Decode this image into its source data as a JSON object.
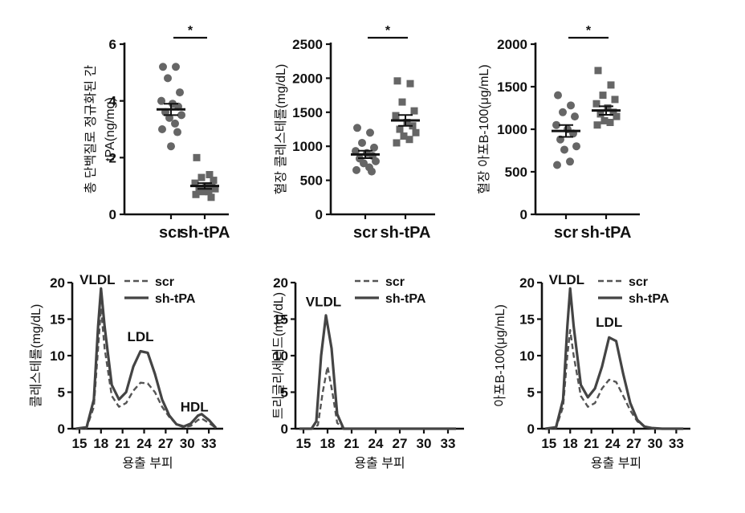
{
  "chart_data": [
    {
      "id": "p1",
      "type": "scatter",
      "ylabel_line1": "총 단백질로 정규화된 간",
      "ylabel_line2": "tPA(ng/mg)",
      "ylim": [
        0,
        6
      ],
      "yticks": [
        0,
        2,
        4,
        6
      ],
      "categories": [
        "scr",
        "sh-tPA"
      ],
      "series": [
        {
          "name": "scr",
          "marker": "circle",
          "mean": 3.7,
          "sem": 0.2,
          "values": [
            5.2,
            5.2,
            4.8,
            4.3,
            4.0,
            3.9,
            3.8,
            3.6,
            3.5,
            3.4,
            3.2,
            3.0,
            2.9,
            2.4
          ]
        },
        {
          "name": "sh-tPA",
          "marker": "square",
          "mean": 1.0,
          "sem": 0.1,
          "values": [
            2.0,
            1.4,
            1.3,
            1.2,
            1.1,
            1.0,
            1.0,
            0.9,
            0.9,
            0.8,
            0.8,
            0.7,
            0.6
          ]
        }
      ],
      "sig": "*"
    },
    {
      "id": "p2",
      "type": "scatter",
      "ylabel": "혈장 콜레스테롤(mg/dL)",
      "ylim": [
        0,
        2500
      ],
      "yticks": [
        0,
        500,
        1000,
        1500,
        2000,
        2500
      ],
      "categories": [
        "scr",
        "sh-tPA"
      ],
      "series": [
        {
          "name": "scr",
          "marker": "circle",
          "mean": 880,
          "sem": 55,
          "values": [
            1270,
            1200,
            1050,
            980,
            930,
            900,
            860,
            820,
            780,
            750,
            690,
            650,
            630
          ]
        },
        {
          "name": "sh-tPA",
          "marker": "square",
          "mean": 1380,
          "sem": 80,
          "values": [
            1960,
            1920,
            1650,
            1520,
            1450,
            1350,
            1300,
            1250,
            1200,
            1150,
            1100,
            1050
          ]
        }
      ],
      "sig": "*"
    },
    {
      "id": "p3",
      "type": "scatter",
      "ylabel": "혈장 아포B-100(μg/mL)",
      "ylim": [
        0,
        2000
      ],
      "yticks": [
        0,
        500,
        1000,
        1500,
        2000
      ],
      "categories": [
        "scr",
        "sh-tPA"
      ],
      "series": [
        {
          "name": "scr",
          "marker": "circle",
          "mean": 980,
          "sem": 70,
          "values": [
            1400,
            1280,
            1200,
            1150,
            1050,
            1000,
            950,
            880,
            800,
            760,
            620,
            580
          ]
        },
        {
          "name": "sh-tPA",
          "marker": "square",
          "mean": 1220,
          "sem": 50,
          "values": [
            1690,
            1520,
            1400,
            1350,
            1300,
            1250,
            1200,
            1180,
            1150,
            1100,
            1080,
            1050
          ]
        }
      ],
      "sig": "*"
    },
    {
      "id": "p4",
      "type": "line",
      "ylabel": "콜레스테롤(mg/dL)",
      "xlabel": "용출 부피",
      "xlim": [
        14,
        35
      ],
      "ylim": [
        0,
        20
      ],
      "xticks": [
        15,
        18,
        21,
        24,
        27,
        30,
        33
      ],
      "yticks": [
        0,
        5,
        10,
        15,
        20
      ],
      "annotations": [
        {
          "text": "VLDL",
          "at": [
            17.5,
            20
          ]
        },
        {
          "text": "LDL",
          "at": [
            23.5,
            12.2
          ]
        },
        {
          "text": "HDL",
          "at": [
            31.0,
            2.6
          ]
        }
      ],
      "legend": [
        "scr",
        "sh-tPA"
      ],
      "series": [
        {
          "name": "scr",
          "style": "dashed",
          "x": [
            14.5,
            16,
            17,
            17.6,
            18,
            18.5,
            19.5,
            20.5,
            21.5,
            22.5,
            23.5,
            24.5,
            25.5,
            26.5,
            27.5,
            28.5,
            29.5,
            30.5,
            31.5,
            32,
            33,
            34
          ],
          "y": [
            0,
            0.1,
            3,
            11,
            16.5,
            11,
            4.5,
            3.0,
            3.5,
            5.2,
            6.3,
            6.2,
            5.0,
            3.0,
            1.6,
            0.6,
            0.2,
            0.4,
            1.2,
            1.4,
            0.8,
            0.1
          ]
        },
        {
          "name": "sh-tPA",
          "style": "solid",
          "x": [
            14.5,
            16,
            17,
            17.6,
            18,
            18.5,
            19.5,
            20.5,
            21.5,
            22.5,
            23.5,
            24.5,
            25.5,
            26.5,
            27.5,
            28.5,
            29.5,
            30.5,
            31.5,
            32,
            33,
            34
          ],
          "y": [
            0,
            0.2,
            4,
            14,
            19.2,
            14,
            6,
            4.0,
            5.0,
            8.5,
            10.6,
            10.4,
            7.5,
            4.0,
            1.8,
            0.6,
            0.3,
            0.7,
            1.8,
            2.0,
            1.2,
            0.1
          ]
        }
      ]
    },
    {
      "id": "p5",
      "type": "line",
      "ylabel": "트리글리세리드(mg/dL)",
      "xlabel": "용출 부피",
      "xlim": [
        14,
        35
      ],
      "ylim": [
        0,
        20
      ],
      "xticks": [
        15,
        18,
        21,
        24,
        27,
        30,
        33
      ],
      "yticks": [
        0,
        5,
        10,
        15,
        20
      ],
      "annotations": [
        {
          "text": "VLDL",
          "at": [
            17.5,
            17.0
          ]
        }
      ],
      "legend": [
        "scr",
        "sh-tPA"
      ],
      "series": [
        {
          "name": "scr",
          "style": "dashed",
          "x": [
            14.5,
            16,
            16.8,
            17.4,
            18,
            18.6,
            19.2,
            20,
            22,
            26,
            30,
            34
          ],
          "y": [
            0,
            0,
            0.5,
            5,
            8.5,
            5,
            0.8,
            0,
            0,
            0,
            0,
            0
          ]
        },
        {
          "name": "sh-tPA",
          "style": "solid",
          "x": [
            14.5,
            16,
            16.6,
            17.2,
            17.8,
            18.5,
            19.2,
            20,
            22,
            26,
            30,
            34
          ],
          "y": [
            0,
            0,
            1,
            10,
            15.5,
            11,
            2,
            0,
            0,
            0,
            0,
            0
          ]
        }
      ]
    },
    {
      "id": "p6",
      "type": "line",
      "ylabel": "아포B-100(μg/mL)",
      "xlabel": "용출 부피",
      "xlim": [
        14,
        35
      ],
      "ylim": [
        0,
        20
      ],
      "xticks": [
        15,
        18,
        21,
        24,
        27,
        30,
        33
      ],
      "yticks": [
        0,
        5,
        10,
        15,
        20
      ],
      "annotations": [
        {
          "text": "VLDL",
          "at": [
            17.5,
            20
          ]
        },
        {
          "text": "LDL",
          "at": [
            23.5,
            14.2
          ]
        }
      ],
      "legend": [
        "scr",
        "sh-tPA"
      ],
      "series": [
        {
          "name": "scr",
          "style": "dashed",
          "x": [
            14.5,
            16,
            17,
            17.6,
            18,
            18.5,
            19.5,
            20.5,
            21.5,
            22.5,
            23.5,
            24.5,
            25.5,
            26.5,
            27.5,
            28.5,
            29.5,
            31,
            34
          ],
          "y": [
            0,
            0.1,
            3,
            10,
            13.5,
            10,
            4.5,
            3.0,
            3.5,
            5.5,
            6.7,
            6.4,
            4.5,
            2.5,
            1.0,
            0.3,
            0.1,
            0,
            0
          ]
        },
        {
          "name": "sh-tPA",
          "style": "solid",
          "x": [
            14.5,
            16,
            17,
            17.6,
            18,
            18.5,
            19.5,
            20.5,
            21.5,
            22.5,
            23.5,
            24.5,
            25.5,
            26.5,
            27.5,
            28.5,
            29.5,
            31,
            34
          ],
          "y": [
            0,
            0.2,
            4,
            14,
            19.2,
            14,
            6,
            4.3,
            5.5,
            8.5,
            12.5,
            12.0,
            7.5,
            3.5,
            1.2,
            0.3,
            0.1,
            0,
            0
          ]
        }
      ]
    }
  ]
}
